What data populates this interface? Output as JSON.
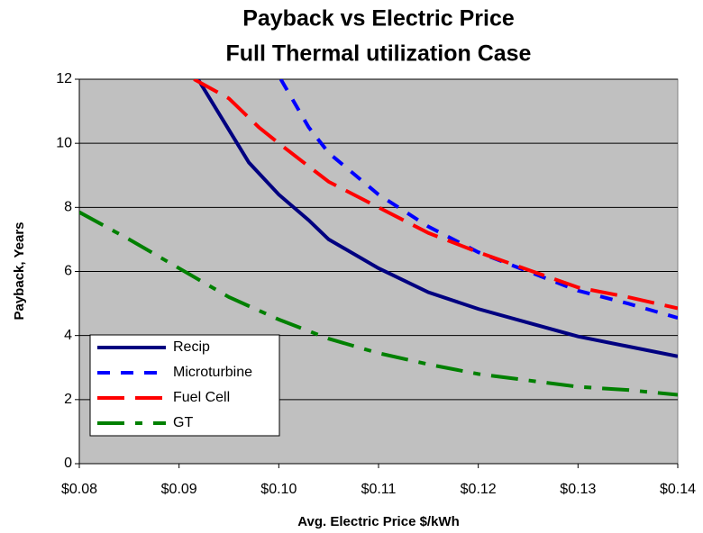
{
  "chart_data": {
    "type": "line",
    "title": "Payback vs Electric Price",
    "subtitle": "Full Thermal utilization Case",
    "x_label": "Avg. Electric Price $/kWh",
    "y_label": "Payback, Years",
    "xlim": [
      0.08,
      0.14
    ],
    "ylim": [
      0,
      12
    ],
    "xticks": [
      {
        "value": 0.08,
        "label": "$0.08"
      },
      {
        "value": 0.09,
        "label": "$0.09"
      },
      {
        "value": 0.1,
        "label": "$0.10"
      },
      {
        "value": 0.11,
        "label": "$0.11"
      },
      {
        "value": 0.12,
        "label": "$0.12"
      },
      {
        "value": 0.13,
        "label": "$0.13"
      },
      {
        "value": 0.14,
        "label": "$0.14"
      }
    ],
    "yticks": [
      0,
      2,
      4,
      6,
      8,
      10,
      12
    ],
    "grid": true,
    "legend": "lower-left",
    "background": "#c0c0c0",
    "series": [
      {
        "name": "Recip",
        "color": "#000080",
        "line_style": "solid",
        "x": [
          0.0919,
          0.097,
          0.1,
          0.103,
          0.105,
          0.11,
          0.115,
          0.12,
          0.125,
          0.13,
          0.135,
          0.14
        ],
        "values": [
          12,
          9.4,
          8.4,
          7.6,
          7.0,
          6.1,
          5.35,
          4.83,
          4.4,
          3.97,
          3.66,
          3.35
        ]
      },
      {
        "name": "Microturbine",
        "color": "#0000ff",
        "line_style": "dash",
        "x": [
          0.1002,
          0.103,
          0.105,
          0.11,
          0.115,
          0.12,
          0.125,
          0.13,
          0.135,
          0.14
        ],
        "values": [
          12,
          10.5,
          9.7,
          8.4,
          7.4,
          6.6,
          6.0,
          5.4,
          5.0,
          4.55
        ]
      },
      {
        "name": "Fuel Cell",
        "color": "#ff0000",
        "line_style": "longdash",
        "x": [
          0.0915,
          0.095,
          0.098,
          0.1,
          0.105,
          0.11,
          0.115,
          0.12,
          0.125,
          0.13,
          0.135,
          0.14
        ],
        "values": [
          12,
          11.4,
          10.5,
          10.0,
          8.8,
          8.0,
          7.2,
          6.6,
          6.05,
          5.5,
          5.2,
          4.85
        ]
      },
      {
        "name": "GT",
        "color": "#008000",
        "line_style": "dashdot",
        "x": [
          0.08,
          0.085,
          0.09,
          0.095,
          0.1,
          0.105,
          0.11,
          0.115,
          0.12,
          0.125,
          0.13,
          0.135,
          0.14
        ],
        "values": [
          7.85,
          7.0,
          6.1,
          5.2,
          4.5,
          3.9,
          3.45,
          3.1,
          2.8,
          2.6,
          2.4,
          2.3,
          2.15
        ]
      }
    ]
  }
}
